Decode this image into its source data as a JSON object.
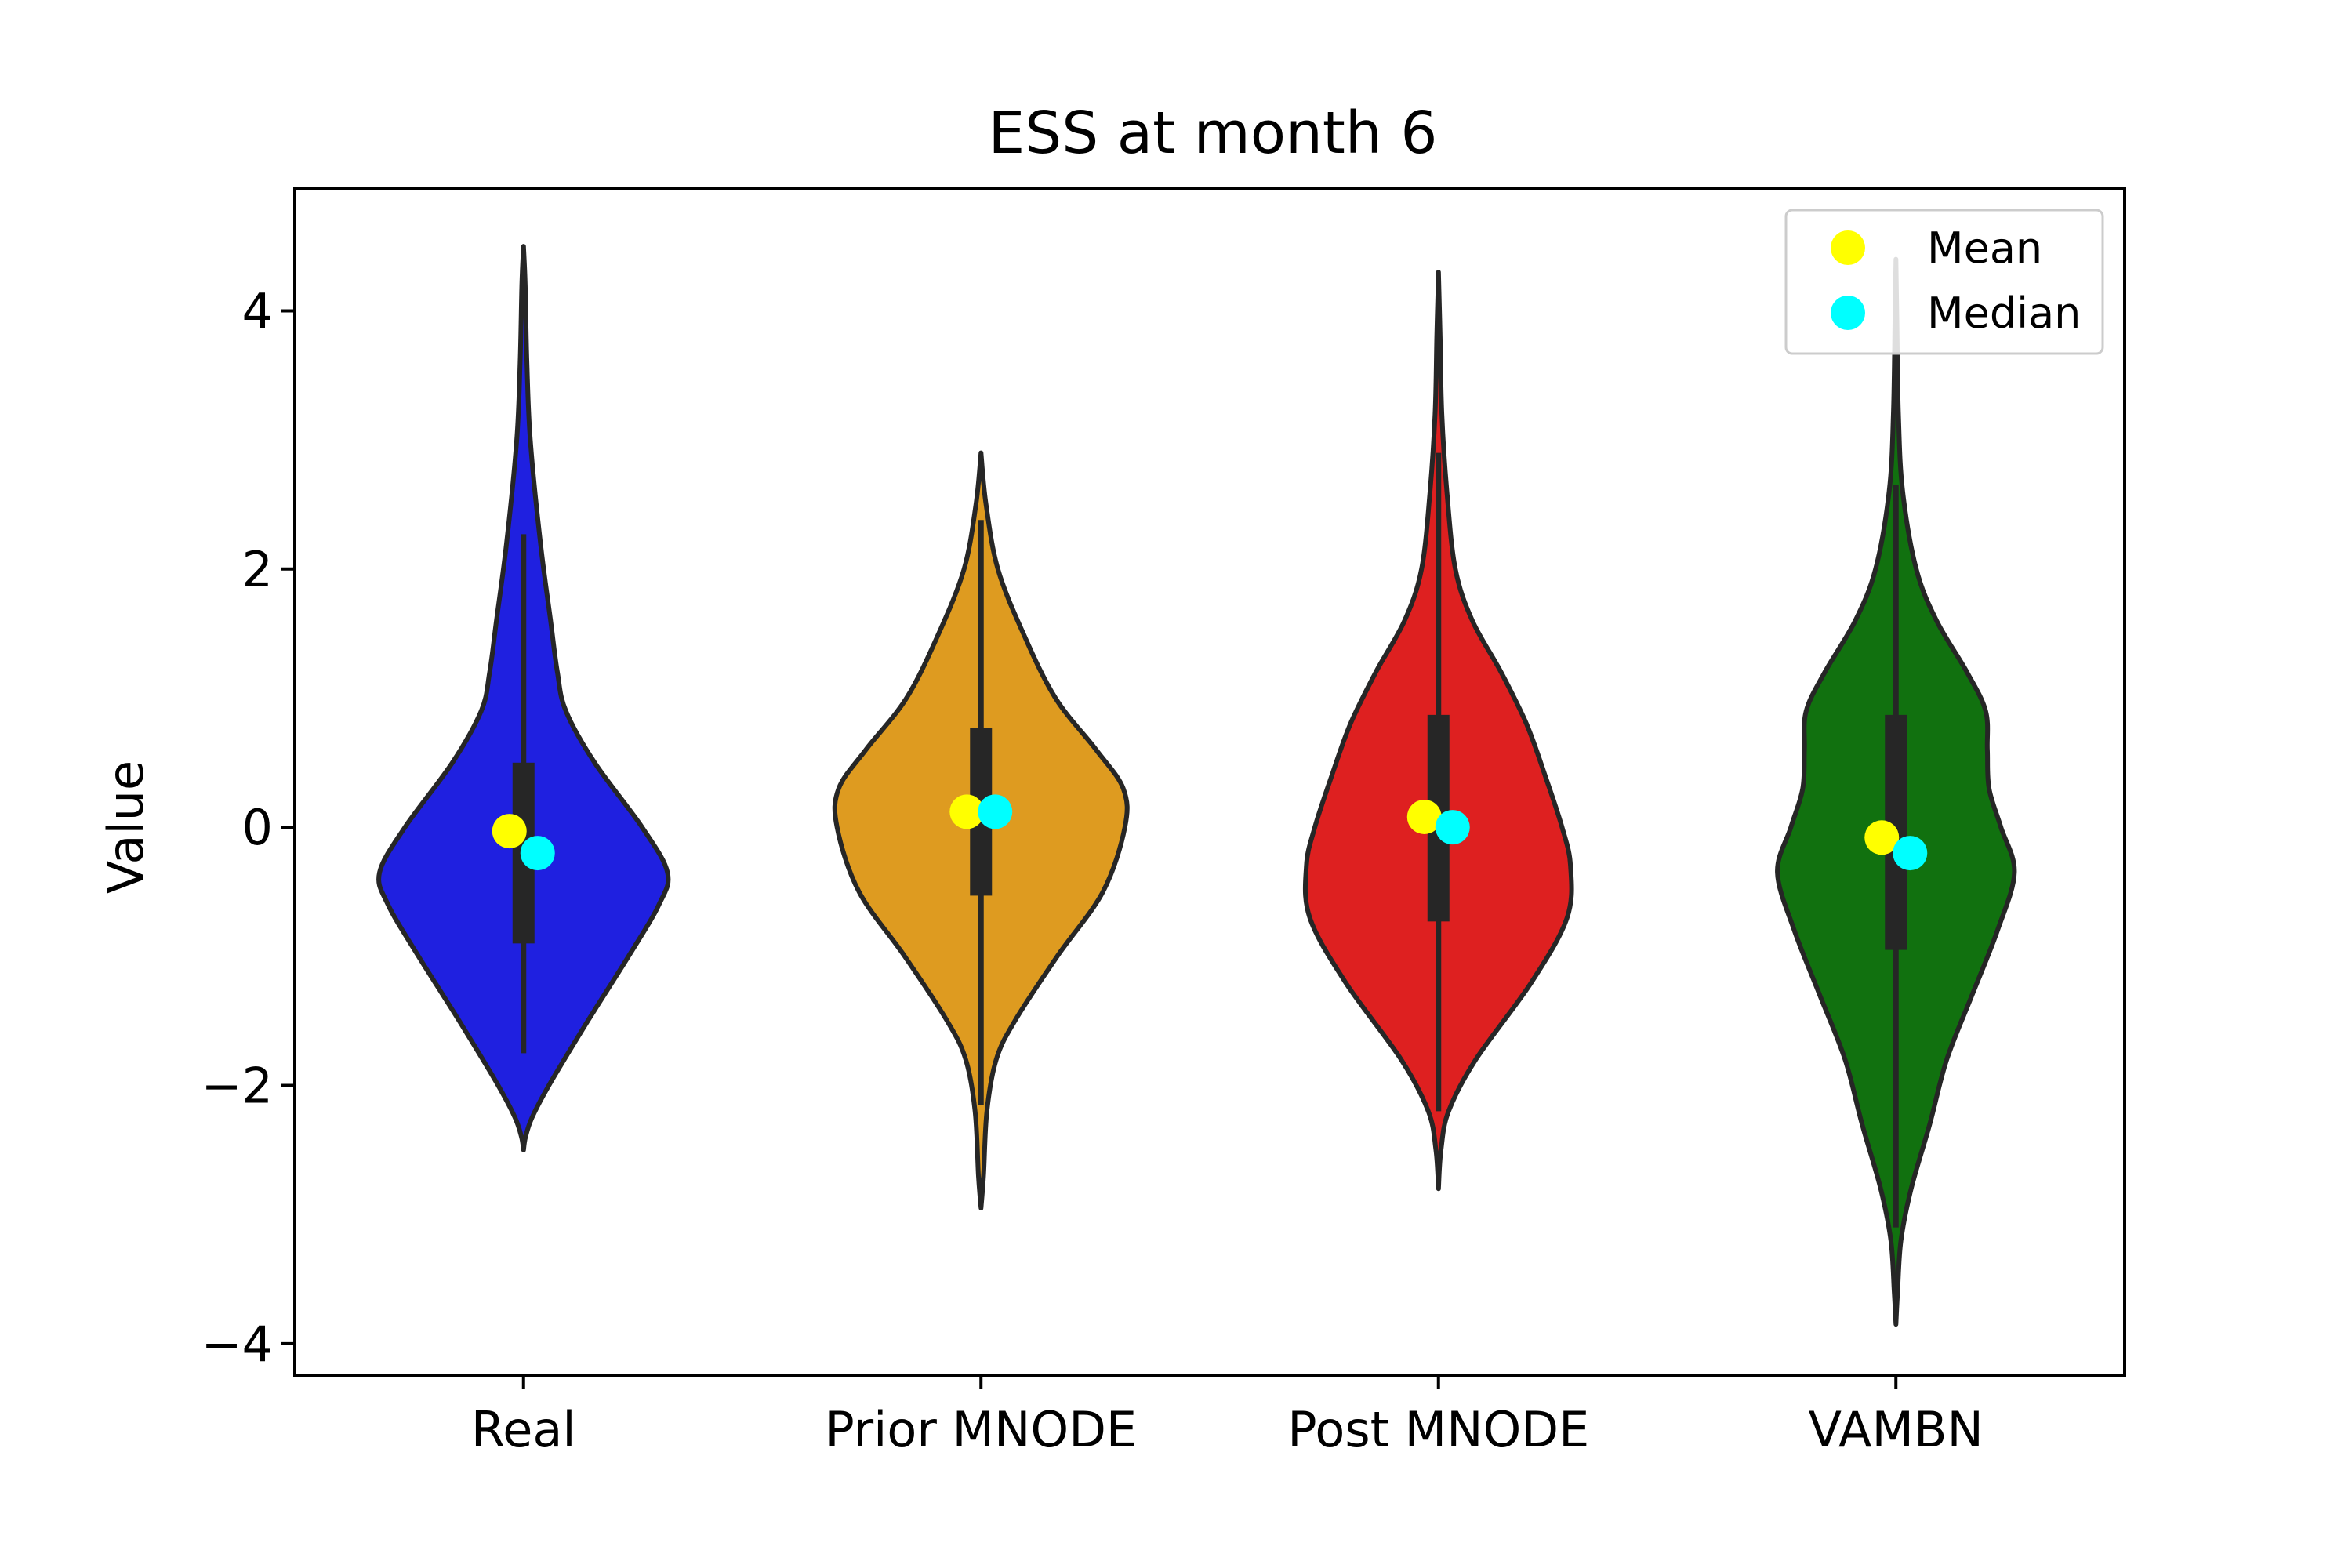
{
  "chart_data": {
    "type": "violin",
    "title": "ESS at month 6",
    "xlabel": "",
    "ylabel": "Value",
    "ylim": [
      -4.25,
      4.95
    ],
    "yticks": [
      {
        "value": -4,
        "label": "−4"
      },
      {
        "value": -2,
        "label": "−2"
      },
      {
        "value": 0,
        "label": "0"
      },
      {
        "value": 2,
        "label": "2"
      },
      {
        "value": 4,
        "label": "4"
      }
    ],
    "categories": [
      "Real",
      "Prior MNODE",
      "Post MNODE",
      "VAMBN"
    ],
    "legend": {
      "location": "top-right",
      "entries": [
        {
          "label": "Mean",
          "color": "#ffff00"
        },
        {
          "label": "Median",
          "color": "#00ffff"
        }
      ]
    },
    "series": [
      {
        "name": "Real",
        "color": "#1f20e0",
        "mean": -0.03,
        "median": -0.2,
        "q1": -0.9,
        "q3": 0.5,
        "whisker_low": -1.75,
        "whisker_high": 2.27,
        "density": [
          [
            -2.5,
            0.0
          ],
          [
            -2.4,
            0.012
          ],
          [
            -2.25,
            0.05
          ],
          [
            -2.0,
            0.15
          ],
          [
            -1.5,
            0.38
          ],
          [
            -1.0,
            0.62
          ],
          [
            -0.6,
            0.8
          ],
          [
            -0.35,
            0.85
          ],
          [
            0.0,
            0.7
          ],
          [
            0.5,
            0.42
          ],
          [
            0.9,
            0.25
          ],
          [
            1.2,
            0.2
          ],
          [
            1.6,
            0.16
          ],
          [
            2.2,
            0.1
          ],
          [
            3.0,
            0.04
          ],
          [
            3.6,
            0.02
          ],
          [
            4.2,
            0.01
          ],
          [
            4.5,
            0.0
          ]
        ]
      },
      {
        "name": "Prior MNODE",
        "color": "#de9b20",
        "mean": 0.12,
        "median": 0.12,
        "q1": -0.53,
        "q3": 0.77,
        "whisker_low": -2.15,
        "whisker_high": 2.38,
        "density": [
          [
            -2.95,
            0.0
          ],
          [
            -2.7,
            0.015
          ],
          [
            -2.2,
            0.035
          ],
          [
            -1.8,
            0.09
          ],
          [
            -1.5,
            0.2
          ],
          [
            -1.0,
            0.45
          ],
          [
            -0.5,
            0.72
          ],
          [
            0.0,
            0.85
          ],
          [
            0.3,
            0.84
          ],
          [
            0.6,
            0.68
          ],
          [
            1.0,
            0.44
          ],
          [
            1.5,
            0.25
          ],
          [
            2.0,
            0.1
          ],
          [
            2.5,
            0.03
          ],
          [
            2.9,
            0.0
          ]
        ]
      },
      {
        "name": "Post MNODE",
        "color": "#de2020",
        "mean": 0.08,
        "median": 0.0,
        "q1": -0.73,
        "q3": 0.87,
        "whisker_low": -2.2,
        "whisker_high": 2.9,
        "density": [
          [
            -2.8,
            0.0
          ],
          [
            -2.5,
            0.015
          ],
          [
            -2.2,
            0.06
          ],
          [
            -1.8,
            0.22
          ],
          [
            -1.2,
            0.55
          ],
          [
            -0.7,
            0.76
          ],
          [
            -0.3,
            0.78
          ],
          [
            0.0,
            0.73
          ],
          [
            0.4,
            0.63
          ],
          [
            0.8,
            0.52
          ],
          [
            1.2,
            0.37
          ],
          [
            1.6,
            0.2
          ],
          [
            2.0,
            0.1
          ],
          [
            2.6,
            0.05
          ],
          [
            3.2,
            0.02
          ],
          [
            3.8,
            0.01
          ],
          [
            4.3,
            0.0
          ]
        ]
      },
      {
        "name": "VAMBN",
        "color": "#11710f",
        "mean": -0.08,
        "median": -0.2,
        "q1": -0.95,
        "q3": 0.87,
        "whisker_low": -3.1,
        "whisker_high": 2.65,
        "density": [
          [
            -3.85,
            0.0
          ],
          [
            -3.6,
            0.01
          ],
          [
            -3.2,
            0.03
          ],
          [
            -2.8,
            0.09
          ],
          [
            -2.3,
            0.2
          ],
          [
            -1.8,
            0.3
          ],
          [
            -1.3,
            0.45
          ],
          [
            -0.8,
            0.6
          ],
          [
            -0.35,
            0.7
          ],
          [
            0.0,
            0.62
          ],
          [
            0.3,
            0.55
          ],
          [
            0.6,
            0.54
          ],
          [
            0.9,
            0.53
          ],
          [
            1.2,
            0.42
          ],
          [
            1.6,
            0.24
          ],
          [
            2.0,
            0.12
          ],
          [
            2.6,
            0.04
          ],
          [
            3.2,
            0.015
          ],
          [
            4.0,
            0.005
          ],
          [
            4.4,
            0.0
          ]
        ]
      }
    ]
  }
}
